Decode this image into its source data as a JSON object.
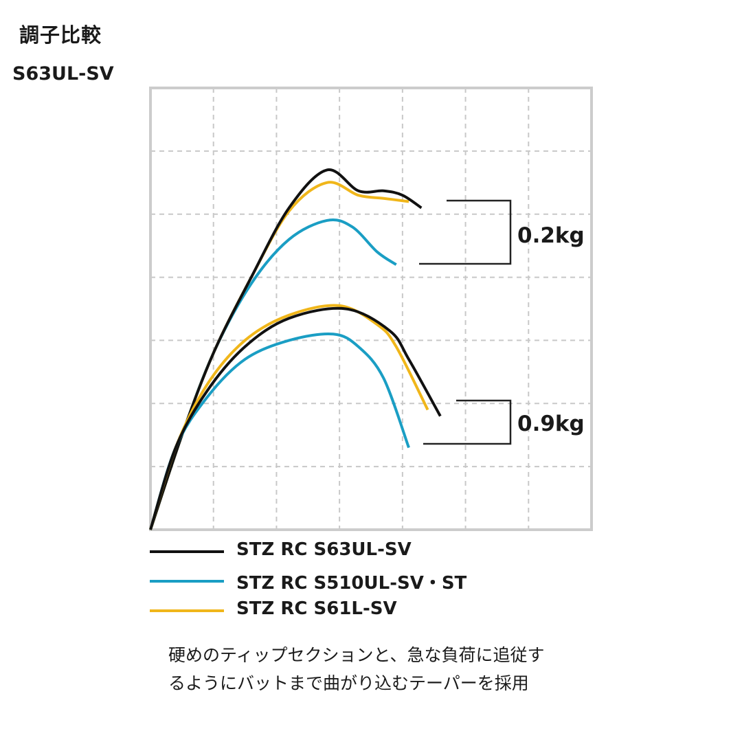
{
  "title": "調子比較",
  "subtitle": "S63UL-SV",
  "colors": {
    "black": "#111111",
    "blue": "#1a9ec4",
    "yellow": "#f0b61a",
    "grid": "#c8c8c8",
    "frame": "#cccccc"
  },
  "chart_data": {
    "type": "line",
    "title": "調子比較",
    "xlim": [
      0,
      7
    ],
    "ylim": [
      0,
      7
    ],
    "grid": true,
    "legend_placement": "bottom",
    "annotations": [
      {
        "label": "0.2kg",
        "series_group": "upper"
      },
      {
        "label": "0.9kg",
        "series_group": "lower"
      }
    ],
    "series": [
      {
        "name": "STZ RC S63UL-SV",
        "color": "#111111",
        "load": "0.2kg",
        "x": [
          0.0,
          0.5,
          1.0,
          1.6,
          2.2,
          2.8,
          3.3,
          3.7,
          4.0,
          4.3
        ],
        "y": [
          0.0,
          1.5,
          2.8,
          4.0,
          5.1,
          5.7,
          5.37,
          5.37,
          5.3,
          5.1
        ]
      },
      {
        "name": "STZ RC S510UL-SV・ST",
        "color": "#1a9ec4",
        "load": "0.2kg",
        "x": [
          0.0,
          0.5,
          1.0,
          1.6,
          2.2,
          2.8,
          3.2,
          3.6,
          3.9
        ],
        "y": [
          0.0,
          1.5,
          2.8,
          3.9,
          4.6,
          4.9,
          4.8,
          4.4,
          4.2
        ]
      },
      {
        "name": "STZ RC S61L-SV",
        "color": "#f0b61a",
        "load": "0.2kg",
        "x": [
          0.0,
          0.5,
          1.0,
          1.6,
          2.2,
          2.8,
          3.3,
          3.7,
          4.1
        ],
        "y": [
          0.0,
          1.5,
          2.8,
          4.0,
          5.05,
          5.5,
          5.3,
          5.25,
          5.2
        ]
      },
      {
        "name": "STZ RC S63UL-SV",
        "color": "#111111",
        "load": "0.9kg",
        "x": [
          0.0,
          0.4,
          0.9,
          1.5,
          2.2,
          3.1,
          3.8,
          4.1,
          4.6
        ],
        "y": [
          0.0,
          1.3,
          2.2,
          2.9,
          3.35,
          3.5,
          3.15,
          2.7,
          1.8
        ]
      },
      {
        "name": "STZ RC S510UL-SV・ST",
        "color": "#1a9ec4",
        "load": "0.9kg",
        "x": [
          0.0,
          0.4,
          0.9,
          1.5,
          2.2,
          2.9,
          3.3,
          3.7,
          4.1
        ],
        "y": [
          0.0,
          1.3,
          2.1,
          2.7,
          3.0,
          3.1,
          2.9,
          2.4,
          1.3
        ]
      },
      {
        "name": "STZ RC S61L-SV",
        "color": "#f0b61a",
        "load": "0.9kg",
        "x": [
          0.0,
          0.4,
          0.9,
          1.5,
          2.2,
          3.0,
          3.6,
          3.9,
          4.4
        ],
        "y": [
          0.0,
          1.3,
          2.3,
          3.0,
          3.4,
          3.55,
          3.25,
          2.9,
          1.9
        ]
      }
    ]
  },
  "legend": [
    {
      "label": "STZ RC S63UL-SV",
      "color": "#111111"
    },
    {
      "label": "STZ RC S510UL-SV・ST",
      "color": "#1a9ec4"
    },
    {
      "label": "STZ RC S61L-SV",
      "color": "#f0b61a"
    }
  ],
  "description": [
    "硬めのティップセクションと、急な負荷に追従す",
    "るようにバットまで曲がり込むテーパーを採用"
  ]
}
